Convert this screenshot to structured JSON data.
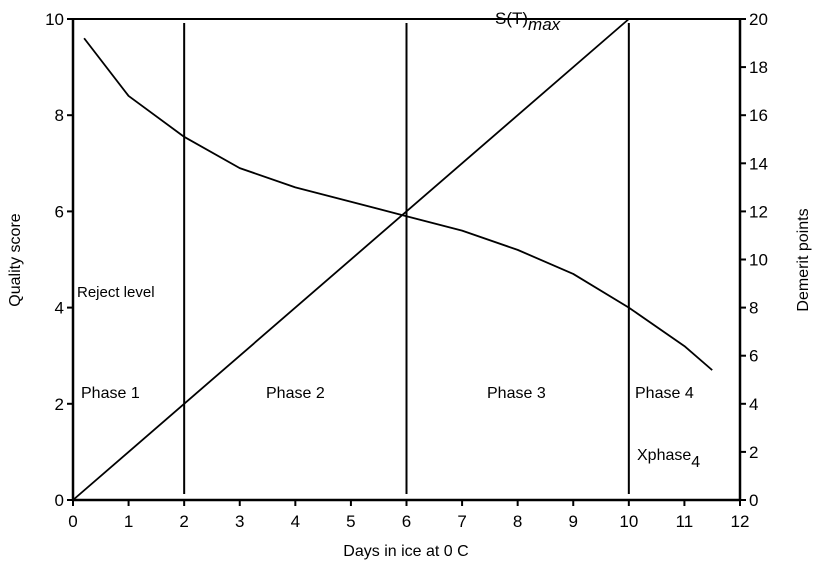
{
  "chart_data": {
    "type": "line",
    "xlabel": "Days in ice at 0 C",
    "ylabel": "Quality score",
    "y2label": "Demerit points",
    "xlim": [
      0,
      12
    ],
    "ylim": [
      0,
      10
    ],
    "y2lim": [
      0,
      20
    ],
    "xticks": [
      "0",
      "1",
      "2",
      "3",
      "4",
      "5",
      "6",
      "7",
      "8",
      "9",
      "10",
      "11",
      "12"
    ],
    "yticks": [
      "0",
      "2",
      "4",
      "6",
      "8",
      "10"
    ],
    "y2ticks": [
      "0",
      "2",
      "4",
      "6",
      "8",
      "10",
      "12",
      "14",
      "16",
      "18",
      "20"
    ],
    "grid": false,
    "series": [
      {
        "name": "Quality score",
        "axis": "left",
        "x": [
          0.2,
          1,
          2,
          3,
          4,
          5,
          6,
          7,
          8,
          9,
          10,
          11,
          11.5
        ],
        "y": [
          9.6,
          8.4,
          7.55,
          6.9,
          6.5,
          6.2,
          5.9,
          5.6,
          5.2,
          4.7,
          4.0,
          3.2,
          2.7
        ]
      },
      {
        "name": "S(T)max",
        "axis": "right",
        "x": [
          0,
          10
        ],
        "y": [
          0,
          20
        ]
      }
    ],
    "phase_boundaries": [
      2,
      6,
      10
    ],
    "annotations": {
      "stmax_main": "S(T)",
      "stmax_sub": "max",
      "reject": "Reject level",
      "phase1": "Phase 1",
      "phase2": "Phase 2",
      "phase3": "Phase 3",
      "phase4": "Phase 4",
      "xphase_main": "Xphase",
      "xphase_sub": "4"
    }
  }
}
